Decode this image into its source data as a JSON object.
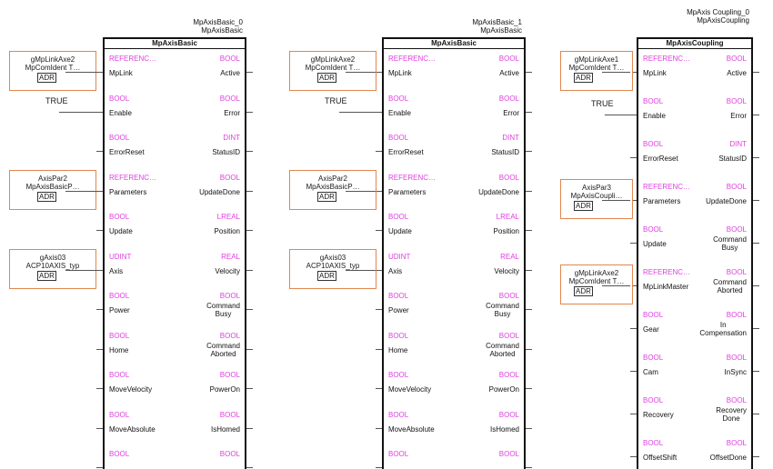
{
  "blocks": [
    {
      "instance": "MpAxisBasic_0",
      "type": "MpAxisBasic",
      "title": "MpAxisBasic",
      "pins": [
        {
          "lt": "REFERENC…",
          "ln": "MpLink",
          "rt": "BOOL",
          "rn": "Active"
        },
        {
          "lt": "BOOL",
          "ln": "Enable",
          "rt": "BOOL",
          "rn": "Error"
        },
        {
          "lt": "BOOL",
          "ln": "ErrorReset",
          "rt": "DINT",
          "rn": "StatusID"
        },
        {
          "lt": "REFERENC…",
          "ln": "Parameters",
          "rt": "BOOL",
          "rn": "UpdateDone"
        },
        {
          "lt": "BOOL",
          "ln": "Update",
          "rt": "LREAL",
          "rn": "Position"
        },
        {
          "lt": "UDINT",
          "ln": "Axis",
          "rt": "REAL",
          "rn": "Velocity"
        },
        {
          "lt": "BOOL",
          "ln": "Power",
          "rt": "BOOL",
          "rn": "Command Busy"
        },
        {
          "lt": "BOOL",
          "ln": "Home",
          "rt": "BOOL",
          "rn": "Command Aborted"
        },
        {
          "lt": "BOOL",
          "ln": "MoveVelocity",
          "rt": "BOOL",
          "rn": "PowerOn"
        },
        {
          "lt": "BOOL",
          "ln": "MoveAbsolute",
          "rt": "BOOL",
          "rn": "IsHomed"
        },
        {
          "lt": "BOOL",
          "ln": "",
          "rt": "BOOL",
          "rn": ""
        }
      ],
      "inputs": [
        {
          "pin": 0,
          "kind": "param",
          "l1": "gMpLinkAxe2",
          "l2": "MpComIdent T…",
          "adr": "ADR"
        },
        {
          "pin": 1,
          "kind": "const",
          "value": "TRUE"
        },
        {
          "pin": 3,
          "kind": "param",
          "l1": "AxisPar2",
          "l2": "MpAxisBasicP…",
          "adr": "ADR"
        },
        {
          "pin": 5,
          "kind": "param",
          "l1": "gAxis03",
          "l2": "ACP10AXIS_typ",
          "adr": "ADR"
        }
      ]
    },
    {
      "instance": "MpAxisBasic_1",
      "type": "MpAxisBasic",
      "title": "MpAxisBasic",
      "pins": [
        {
          "lt": "REFERENC…",
          "ln": "MpLink",
          "rt": "BOOL",
          "rn": "Active"
        },
        {
          "lt": "BOOL",
          "ln": "Enable",
          "rt": "BOOL",
          "rn": "Error"
        },
        {
          "lt": "BOOL",
          "ln": "ErrorReset",
          "rt": "DINT",
          "rn": "StatusID"
        },
        {
          "lt": "REFERENC…",
          "ln": "Parameters",
          "rt": "BOOL",
          "rn": "UpdateDone"
        },
        {
          "lt": "BOOL",
          "ln": "Update",
          "rt": "LREAL",
          "rn": "Position"
        },
        {
          "lt": "UDINT",
          "ln": "Axis",
          "rt": "REAL",
          "rn": "Velocity"
        },
        {
          "lt": "BOOL",
          "ln": "Power",
          "rt": "BOOL",
          "rn": "Command Busy"
        },
        {
          "lt": "BOOL",
          "ln": "Home",
          "rt": "BOOL",
          "rn": "Command Aborted"
        },
        {
          "lt": "BOOL",
          "ln": "MoveVelocity",
          "rt": "BOOL",
          "rn": "PowerOn"
        },
        {
          "lt": "BOOL",
          "ln": "MoveAbsolute",
          "rt": "BOOL",
          "rn": "IsHomed"
        },
        {
          "lt": "BOOL",
          "ln": "",
          "rt": "BOOL",
          "rn": ""
        }
      ],
      "inputs": [
        {
          "pin": 0,
          "kind": "param",
          "l1": "gMpLinkAxe2",
          "l2": "MpComIdent T…",
          "adr": "ADR"
        },
        {
          "pin": 1,
          "kind": "const",
          "value": "TRUE"
        },
        {
          "pin": 3,
          "kind": "param",
          "l1": "AxisPar2",
          "l2": "MpAxisBasicP…",
          "adr": "ADR"
        },
        {
          "pin": 5,
          "kind": "param",
          "l1": "gAxis03",
          "l2": "ACP10AXIS_typ",
          "adr": "ADR"
        }
      ]
    },
    {
      "instance": "MpAxis Coupling_0",
      "type": "MpAxisCoupling",
      "title": "MpAxisCoupling",
      "pins": [
        {
          "lt": "REFERENC…",
          "ln": "MpLink",
          "rt": "BOOL",
          "rn": "Active"
        },
        {
          "lt": "BOOL",
          "ln": "Enable",
          "rt": "BOOL",
          "rn": "Error"
        },
        {
          "lt": "BOOL",
          "ln": "ErrorReset",
          "rt": "DINT",
          "rn": "StatusID"
        },
        {
          "lt": "REFERENC…",
          "ln": "Parameters",
          "rt": "BOOL",
          "rn": "UpdateDone"
        },
        {
          "lt": "BOOL",
          "ln": "Update",
          "rt": "BOOL",
          "rn": "Command Busy"
        },
        {
          "lt": "REFERENC…",
          "ln": "MpLinkMaster",
          "rt": "BOOL",
          "rn": "Command Aborted"
        },
        {
          "lt": "BOOL",
          "ln": "Gear",
          "rt": "BOOL",
          "rn": "In Compensation"
        },
        {
          "lt": "BOOL",
          "ln": "Cam",
          "rt": "BOOL",
          "rn": "InSync"
        },
        {
          "lt": "BOOL",
          "ln": "Recovery",
          "rt": "BOOL",
          "rn": "Recovery Done"
        },
        {
          "lt": "BOOL",
          "ln": "OffsetShift",
          "rt": "BOOL",
          "rn": "OffsetDone"
        }
      ],
      "inputs": [
        {
          "pin": 0,
          "kind": "param",
          "l1": "gMpLinkAxe1",
          "l2": "MpComIdent T…",
          "adr": "ADR"
        },
        {
          "pin": 1,
          "kind": "const",
          "value": "TRUE"
        },
        {
          "pin": 3,
          "kind": "param",
          "l1": "AxisPar3",
          "l2": "MpAxisCoupli…",
          "adr": "ADR"
        },
        {
          "pin": 5,
          "kind": "param",
          "l1": "gMpLinkAxe2",
          "l2": "MpComIdent T…",
          "adr": "ADR"
        }
      ]
    }
  ]
}
